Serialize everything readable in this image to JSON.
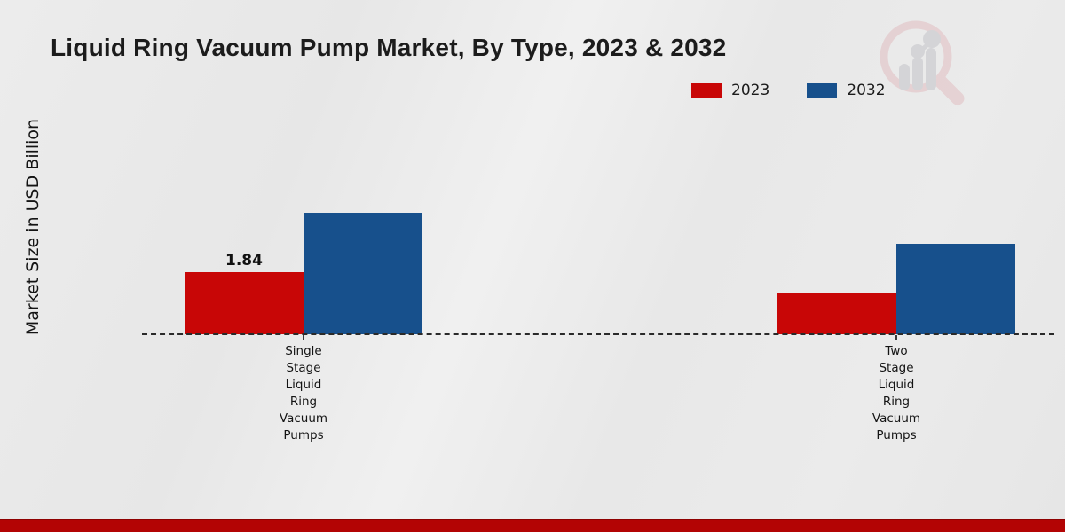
{
  "colors": {
    "background": "#e9e9e9",
    "text": "#1b1b1b",
    "footer_bar": "#b30404",
    "baseline": "#2a2a2a",
    "logo_ring": "#e2c3c6",
    "logo_bars": "#c7c7cc"
  },
  "chart_data": {
    "type": "bar",
    "title": "Liquid Ring Vacuum Pump Market, By Type, 2023 & 2032",
    "ylabel": "Market Size in USD Billion",
    "xlabel": "",
    "categories": [
      "Single Stage Liquid Ring Vacuum Pumps",
      "Two Stage Liquid Ring Vacuum Pumps"
    ],
    "series": [
      {
        "name": "2023",
        "color": "#c80606",
        "values": [
          1.84,
          1.24
        ]
      },
      {
        "name": "2032",
        "color": "#17508c",
        "values": [
          3.6,
          2.68
        ]
      }
    ],
    "value_labels": [
      {
        "category_index": 0,
        "series_index": 0,
        "text": "1.84"
      }
    ],
    "legend_position": "top-right",
    "legend_entries": [
      "2023",
      "2032"
    ],
    "baseline_style": "dashed",
    "grid": false,
    "ylim": [
      0,
      4
    ]
  }
}
